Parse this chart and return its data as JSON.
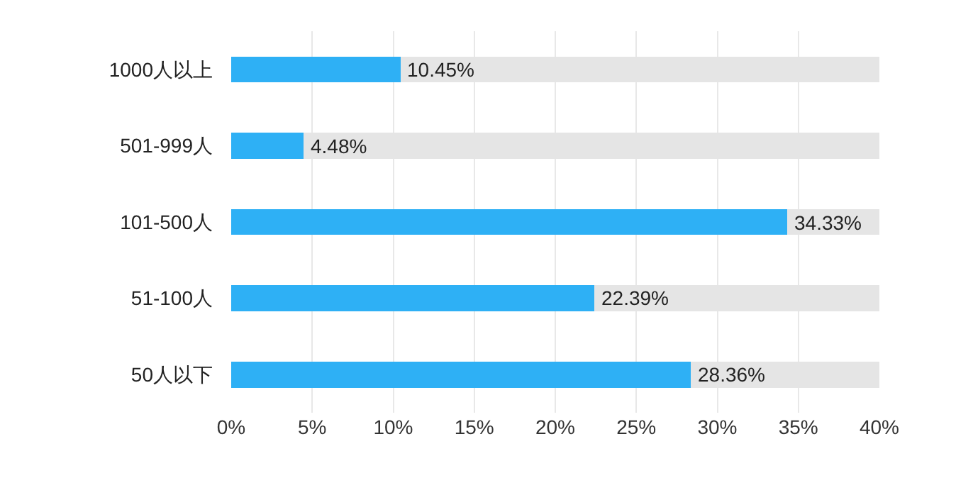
{
  "chart_data": {
    "type": "bar",
    "orientation": "horizontal",
    "categories": [
      "1000人以上",
      "501-999人",
      "101-500人",
      "51-100人",
      "50人以下"
    ],
    "stacked": true,
    "series": [
      {
        "color": "#2eb0f5",
        "values": [
          10.45,
          4.48,
          34.33,
          22.39,
          28.36
        ],
        "value_labels": [
          "10.45%",
          "4.48%",
          "34.33%",
          "22.39%",
          "28.36%"
        ]
      },
      {
        "color": "#e5e5e5",
        "values": [
          29.55,
          35.52,
          5.67,
          17.61,
          11.64
        ]
      }
    ],
    "xlim": [
      0,
      40
    ],
    "xticks": [
      {
        "value": 0,
        "label": "0%"
      },
      {
        "value": 5,
        "label": "5%"
      },
      {
        "value": 10,
        "label": "10%"
      },
      {
        "value": 15,
        "label": "15%"
      },
      {
        "value": 20,
        "label": "20%"
      },
      {
        "value": 25,
        "label": "25%"
      },
      {
        "value": 30,
        "label": "30%"
      },
      {
        "value": 35,
        "label": "35%"
      },
      {
        "value": 40,
        "label": "40%"
      }
    ],
    "grid": "x"
  }
}
